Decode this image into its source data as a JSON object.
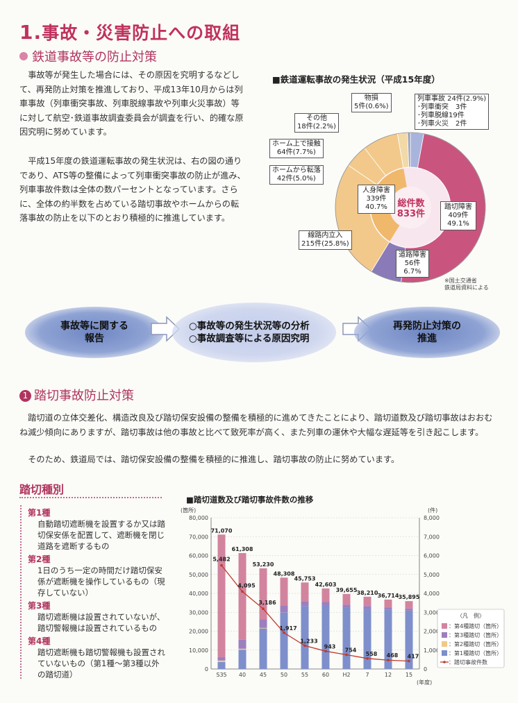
{
  "heading": {
    "num": "1.",
    "title": "事故・災害防止への取組"
  },
  "subheading": "鉄道事故等の防止対策",
  "paragraph1": "事故等が発生した場合には、その原因を究明するなどして、再発防止対策を推進しており、平成13年10月からは列車事故（列車衝突事故、列車脱線事故や列車火災事故）等に対して航空･鉄道事故調査委員会が調査を行い、的確な原因究明に努めています。",
  "paragraph2": "平成15年度の鉄道運転事故の発生状況は、右の図の通りであり、ATS等の整備によって列車衝突事故の防止が進み、列車事故件数は全体の数パーセントとなっています。さらに、全体の約半数を占めている踏切事故やホームからの転落事故の防止を以下のとおり積極的に推進しています。",
  "pie": {
    "title": "■鉄道運転事故の発生状況（平成15年度）",
    "center_label": "総件数",
    "center_value": "833件",
    "source": "※国土交通省\n鉄道局資料による",
    "labels": {
      "train": [
        "列車事故 24件(2.9%)",
        "･列車衝突　3件",
        "･列車脱線19件",
        "･列車火災　2件"
      ],
      "property": [
        "物損",
        "5件(0.6%)"
      ],
      "other": [
        "その他",
        "18件(2.2%)"
      ],
      "contact": [
        "ホーム上で接触",
        "64件(7.7%)"
      ],
      "fall": [
        "ホームから転落",
        "42件(5.0%)"
      ],
      "injury": [
        "人身障害",
        "339件",
        "40.7%"
      ],
      "trespass": [
        "線路内立入",
        "215件(25.8%)"
      ],
      "road": [
        "道路障害",
        "56件",
        "6.7%"
      ],
      "crossing": [
        "踏切障害",
        "409件",
        "49.1%"
      ]
    }
  },
  "chart_data": [
    {
      "type": "pie",
      "title": "鉄道運転事故の発生状況（平成15年度）",
      "total": 833,
      "slices": [
        {
          "name": "列車事故",
          "value": 24,
          "percent": 2.9,
          "color": "#a9b4dc"
        },
        {
          "name": "踏切障害",
          "value": 409,
          "percent": 49.1,
          "color": "#c9557f"
        },
        {
          "name": "道路障害",
          "value": 56,
          "percent": 6.7,
          "color": "#8a7ab8"
        },
        {
          "name": "線路内立入",
          "value": 215,
          "percent": 25.8,
          "color": "#f2c98a"
        },
        {
          "name": "ホームから転落",
          "value": 42,
          "percent": 5.0,
          "color": "#f2c98a"
        },
        {
          "name": "ホーム上で接触",
          "value": 64,
          "percent": 7.7,
          "color": "#f2c98a"
        },
        {
          "name": "その他",
          "value": 18,
          "percent": 2.2,
          "color": "#f2d9a8"
        },
        {
          "name": "物損",
          "value": 5,
          "percent": 0.6,
          "color": "#9aa0b4"
        }
      ],
      "inner_group": {
        "name": "人身障害",
        "value": 339,
        "percent": 40.7
      }
    },
    {
      "type": "bar",
      "title": "踏切道数及び踏切事故件数の推移",
      "categories": [
        "S35",
        "40",
        "45",
        "50",
        "55",
        "60",
        "H2",
        "7",
        "12",
        "15"
      ],
      "xlabel": "(年度)",
      "ylabel_left": "(箇所)",
      "ylabel_right": "(件)",
      "ylim_left": [
        0,
        80000
      ],
      "ylim_right": [
        0,
        8000
      ],
      "totals": [
        71070,
        61308,
        53230,
        48308,
        45753,
        42603,
        39655,
        38210,
        36714,
        35895
      ],
      "series": [
        {
          "name": "：第4種踏切（箇所）",
          "color": "#d2849e",
          "values": [
            64700,
            45800,
            27000,
            14700,
            9900,
            7200,
            5600,
            4900,
            4100,
            3900
          ]
        },
        {
          "name": "：第3種踏切（箇所）",
          "color": "#9d7fbf",
          "values": [
            1900,
            4800,
            4500,
            3600,
            2600,
            2000,
            1600,
            1400,
            1300,
            1100
          ]
        },
        {
          "name": "：第2種踏切（箇所）",
          "color": "#f0c987",
          "values": [
            800,
            500,
            300,
            100,
            0,
            0,
            0,
            0,
            0,
            0
          ]
        },
        {
          "name": "：第1種踏切（箇所）",
          "color": "#7e8fcb",
          "values": [
            3670,
            10208,
            21430,
            29908,
            33253,
            33403,
            32455,
            31910,
            31314,
            30895
          ]
        }
      ],
      "line": {
        "name": "：踏切事故件数",
        "color": "#c0392b",
        "values": [
          5482,
          4095,
          3186,
          1917,
          1233,
          943,
          754,
          558,
          468,
          417
        ]
      },
      "legend_title": "〈凡　例〉",
      "left_ticks": [
        "80,000",
        "70,000",
        "60,000",
        "50,000",
        "40,000",
        "30,000",
        "20,000",
        "10,000",
        "0"
      ],
      "right_ticks": [
        "8,000",
        "7,000",
        "6,000",
        "5,000",
        "4,000",
        "3,000",
        "2,000",
        "1,000",
        "0"
      ],
      "total_labels": [
        "71,070",
        "61,308",
        "53,230",
        "48,308",
        "45,753",
        "42,603",
        "39,655",
        "38,210",
        "36,714",
        "35,895"
      ],
      "line_labels": [
        "5,482",
        "4,095",
        "3,186",
        "1,917",
        "1,233",
        "943",
        "754",
        "558",
        "468",
        "417"
      ]
    }
  ],
  "flow": {
    "step1": "事故等に関する\n報告",
    "step2a": "○事故等の発生状況等の分析",
    "step2b": "○事故調査等による原因究明",
    "step3": "再発防止対策の\n推進"
  },
  "section": {
    "num": "1",
    "title": "踏切事故防止対策"
  },
  "section_para1": "踏切道の立体交差化、構造改良及び踏切保安設備の整備を積極的に進めてきたことにより、踏切道数及び踏切事故はおおむね減少傾向にありますが、踏切事故は他の事故と比べて致死率が高く、また列車の運休や大幅な遅延等を引き起こします。",
  "section_para2": "そのため、鉄道局では、踏切保安設備の整備を積極的に推進し、踏切事故の防止に努めています。",
  "crossing_types": {
    "title": "踏切種別",
    "items": [
      {
        "head": "第1種",
        "text": "自動踏切遮断機を設置するか又は踏切保安係を配置して、遮断機を閉じ道路を遮断するもの"
      },
      {
        "head": "第2種",
        "text": "1日のうち一定の時間だけ踏切保安係が遮断機を操作しているもの（現存していない）"
      },
      {
        "head": "第3種",
        "text": "踏切遮断機は設置されていないが、踏切警報機は設置されているもの"
      },
      {
        "head": "第4種",
        "text": "踏切遮断機も踏切警報機も設置されていないもの（第1種〜第3種以外の踏切道）"
      }
    ]
  },
  "bar_chart_title": "■踏切道数及び踏切事故件数の推移"
}
